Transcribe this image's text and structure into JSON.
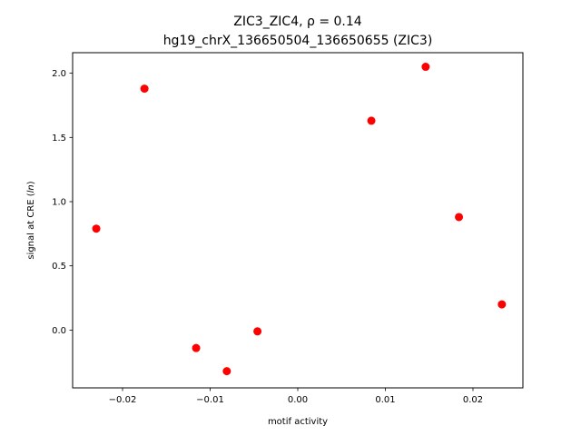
{
  "chart_data": {
    "type": "scatter",
    "title_line1": "ZIC3_ZIC4, ρ = 0.14",
    "title_line2": "hg19_chrX_136650504_136650655 (ZIC3)",
    "xlabel": "motif activity",
    "ylabel_prefix": "signal at CRE (",
    "ylabel_italic": "ln",
    "ylabel_suffix": ")",
    "xlim": [
      -0.0257,
      0.0257
    ],
    "ylim": [
      -0.45,
      2.16
    ],
    "xticks": [
      {
        "value": -0.02,
        "label": "−0.02"
      },
      {
        "value": -0.01,
        "label": "−0.01"
      },
      {
        "value": 0.0,
        "label": "0.00"
      },
      {
        "value": 0.01,
        "label": "0.01"
      },
      {
        "value": 0.02,
        "label": "0.02"
      }
    ],
    "yticks": [
      {
        "value": 0.0,
        "label": "0.0"
      },
      {
        "value": 0.5,
        "label": "0.5"
      },
      {
        "value": 1.0,
        "label": "1.0"
      },
      {
        "value": 1.5,
        "label": "1.5"
      },
      {
        "value": 2.0,
        "label": "2.0"
      }
    ],
    "marker_color": "#ff0000",
    "points": [
      {
        "x": -0.023,
        "y": 0.79
      },
      {
        "x": -0.0175,
        "y": 1.88
      },
      {
        "x": -0.0116,
        "y": -0.14
      },
      {
        "x": -0.0081,
        "y": -0.32
      },
      {
        "x": -0.0046,
        "y": -0.01
      },
      {
        "x": 0.0084,
        "y": 1.63
      },
      {
        "x": 0.0146,
        "y": 2.05
      },
      {
        "x": 0.0184,
        "y": 0.88
      },
      {
        "x": 0.0233,
        "y": 0.2
      }
    ]
  }
}
